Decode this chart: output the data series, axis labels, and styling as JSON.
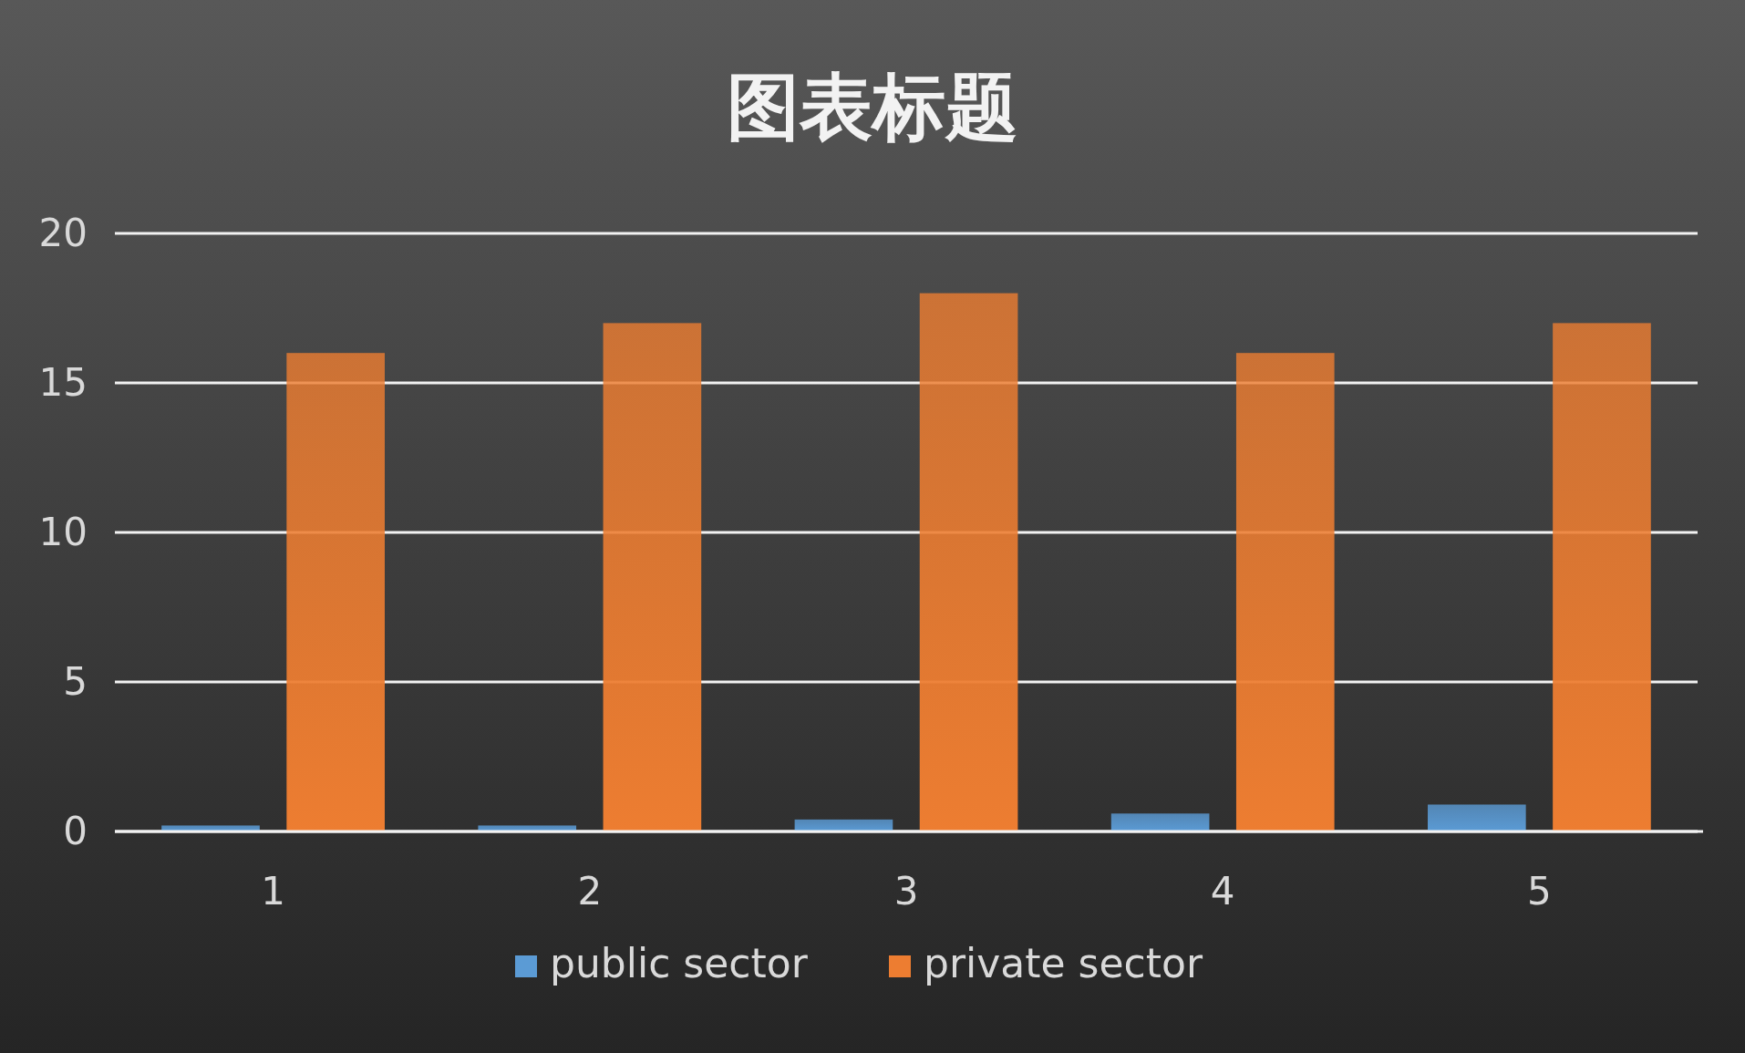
{
  "chart_data": {
    "type": "bar",
    "title": "图表标题",
    "categories": [
      "1",
      "2",
      "3",
      "4",
      "5"
    ],
    "series": [
      {
        "name": "public sector",
        "color": "#5b9bd5",
        "values": [
          0.2,
          0.2,
          0.4,
          0.6,
          0.9
        ]
      },
      {
        "name": "private sector",
        "color": "#ed7d31",
        "values": [
          16,
          17,
          18,
          16,
          17
        ]
      }
    ],
    "ylim": [
      0,
      20
    ],
    "yticks": [
      0,
      5,
      10,
      15,
      20
    ],
    "grid": "y",
    "legend": "bottom"
  }
}
